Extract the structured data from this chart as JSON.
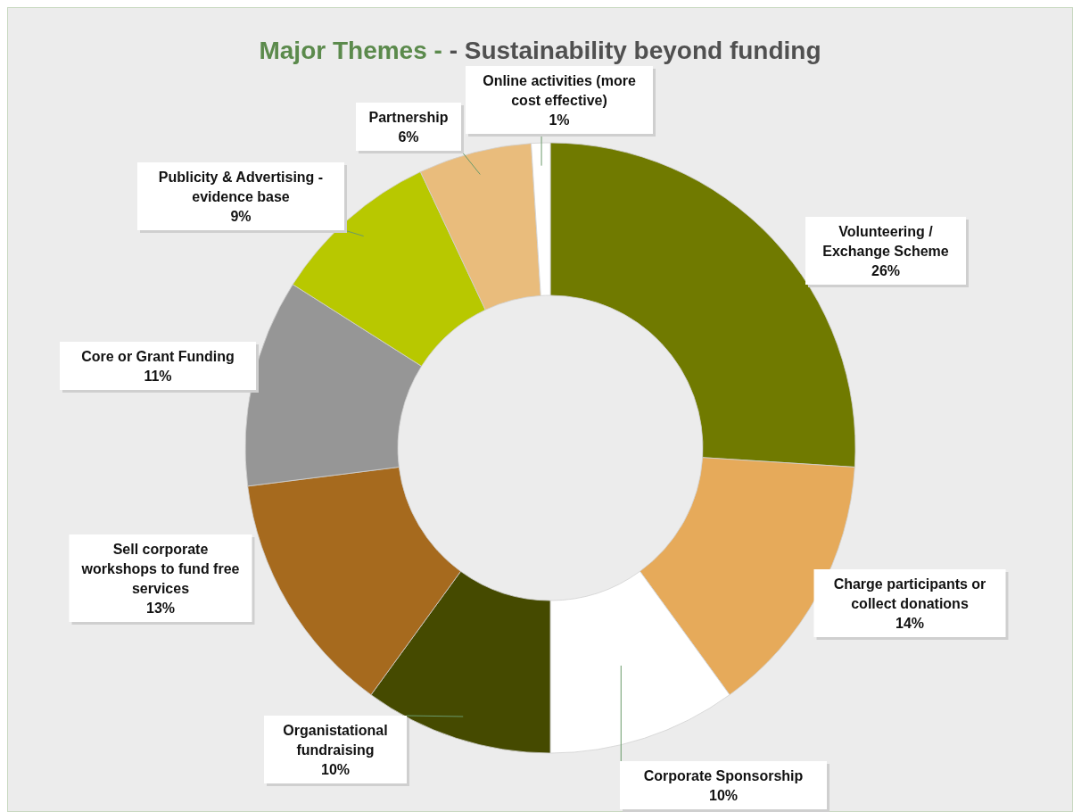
{
  "chart_data": {
    "type": "donut",
    "title": "Major Themes -",
    "subtitle": "- Sustainability beyond funding",
    "categories": [
      "Volunteering / Exchange Scheme",
      "Charge participants or collect donations",
      "Corporate Sponsorship",
      "Organistational fundraising",
      "Sell corporate workshops to fund free services",
      "Core or Grant Funding",
      "Publicity & Advertising - evidence base",
      "Partnership",
      "Online activities (more cost effective)"
    ],
    "values": [
      26,
      14,
      10,
      10,
      13,
      11,
      9,
      6,
      1
    ],
    "colors": [
      "#707a00",
      "#e6aa5a",
      "#ffffff",
      "#454a00",
      "#a66a1e",
      "#969696",
      "#b8c800",
      "#e9bc7c",
      "#ffffff"
    ],
    "value_labels": [
      "26%",
      "14%",
      "10%",
      "10%",
      "13%",
      "11%",
      "9%",
      "6%",
      "1%"
    ]
  }
}
